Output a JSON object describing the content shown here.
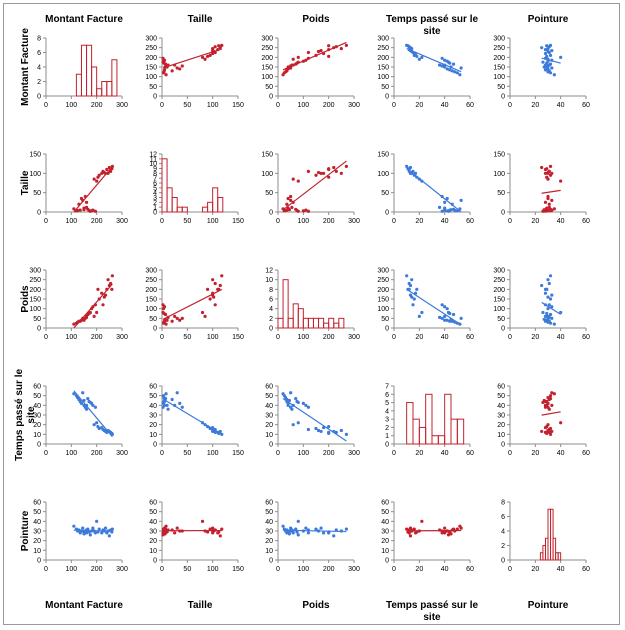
{
  "chart_data": {
    "type": "scatter-matrix",
    "variables": [
      "Montant Facture",
      "Taille",
      "Poids",
      "Temps passé sur le site",
      "Pointure"
    ],
    "variable_title_lines": [
      [
        "Montant Facture"
      ],
      [
        "Taille"
      ],
      [
        "Poids"
      ],
      [
        "Temps passé sur le",
        "site"
      ],
      [
        "Pointure"
      ]
    ],
    "axes": [
      {
        "ylim": [
          0,
          300
        ],
        "yticks": [
          0,
          50,
          100,
          150,
          200,
          250,
          300
        ],
        "xlim": [
          0,
          300
        ],
        "xticks": [
          0,
          100,
          200,
          300
        ]
      },
      {
        "ylim": [
          0,
          150
        ],
        "yticks": [
          0,
          50,
          100,
          150
        ],
        "xlim": [
          0,
          150
        ],
        "xticks": [
          0,
          50,
          100,
          150
        ]
      },
      {
        "ylim": [
          0,
          300
        ],
        "yticks": [
          0,
          50,
          100,
          150,
          200,
          250,
          300
        ],
        "xlim": [
          0,
          300
        ],
        "xticks": [
          0,
          100,
          200,
          300
        ]
      },
      {
        "ylim": [
          0,
          60
        ],
        "yticks": [
          0,
          10,
          20,
          30,
          40,
          50,
          60
        ],
        "xlim": [
          0,
          60
        ],
        "xticks": [
          0,
          20,
          40,
          60
        ]
      },
      {
        "ylim": [
          0,
          60
        ],
        "yticks": [
          0,
          10,
          20,
          30,
          40,
          50,
          60
        ],
        "xlim": [
          0,
          60
        ],
        "xticks": [
          0,
          20,
          40,
          60
        ]
      }
    ],
    "diagonal_ylims": [
      [
        0,
        8
      ],
      [
        0,
        12
      ],
      [
        0,
        12
      ],
      [
        0,
        7
      ],
      [
        0,
        8
      ]
    ],
    "diagonal_yticks": [
      [
        0,
        2,
        4,
        6,
        8
      ],
      [
        0,
        1,
        2,
        3,
        4,
        5,
        6,
        7,
        8,
        9,
        10,
        11,
        12
      ],
      [
        0,
        2,
        4,
        6,
        8,
        10,
        12
      ],
      [
        0,
        1,
        2,
        3,
        4,
        5,
        6,
        7
      ],
      [
        0,
        2,
        4,
        6,
        8
      ]
    ],
    "data": {
      "Montant Facture": [
        110,
        120,
        125,
        130,
        135,
        140,
        145,
        150,
        150,
        155,
        160,
        160,
        165,
        170,
        175,
        180,
        185,
        190,
        195,
        200,
        205,
        210,
        220,
        225,
        230,
        235,
        240,
        245,
        250,
        255,
        260,
        262
      ],
      "Taille": [
        8,
        3,
        4,
        20,
        5,
        35,
        30,
        6,
        10,
        40,
        12,
        25,
        7,
        4,
        2,
        3,
        5,
        85,
        2,
        80,
        90,
        95,
        100,
        105,
        102,
        100,
        110,
        100,
        115,
        105,
        112,
        118
      ],
      "Poids": [
        20,
        25,
        30,
        35,
        35,
        40,
        50,
        45,
        40,
        50,
        55,
        60,
        70,
        75,
        80,
        100,
        110,
        60,
        120,
        80,
        200,
        150,
        180,
        120,
        160,
        170,
        200,
        250,
        220,
        230,
        200,
        270
      ],
      "Temps passé sur le site": [
        52,
        50,
        48,
        46,
        44,
        42,
        53,
        45,
        40,
        38,
        36,
        40,
        47,
        44,
        43,
        42,
        40,
        20,
        38,
        22,
        18,
        16,
        17,
        15,
        14,
        13,
        12,
        14,
        13,
        12,
        11,
        10
      ],
      "Pointure": [
        35,
        32,
        30,
        31,
        28,
        30,
        33,
        27,
        29,
        30,
        31,
        28,
        32,
        29,
        26,
        30,
        33,
        30,
        28,
        40,
        29,
        32,
        28,
        31,
        30,
        33,
        28,
        30,
        25,
        31,
        29,
        32
      ]
    },
    "histograms": [
      {
        "bin_width": 20,
        "bins": [
          {
            "x": 120,
            "count": 3
          },
          {
            "x": 140,
            "count": 7
          },
          {
            "x": 160,
            "count": 7
          },
          {
            "x": 180,
            "count": 4
          },
          {
            "x": 200,
            "count": 1
          },
          {
            "x": 220,
            "count": 2
          },
          {
            "x": 240,
            "count": 2
          },
          {
            "x": 260,
            "count": 5
          }
        ]
      },
      {
        "bin_width": 10,
        "bins": [
          {
            "x": 0,
            "count": 11
          },
          {
            "x": 10,
            "count": 5
          },
          {
            "x": 20,
            "count": 3
          },
          {
            "x": 30,
            "count": 1
          },
          {
            "x": 40,
            "count": 1
          },
          {
            "x": 80,
            "count": 1
          },
          {
            "x": 90,
            "count": 2
          },
          {
            "x": 100,
            "count": 5
          },
          {
            "x": 110,
            "count": 3
          }
        ]
      },
      {
        "bin_width": 20,
        "bins": [
          {
            "x": 0,
            "count": 2
          },
          {
            "x": 20,
            "count": 10
          },
          {
            "x": 40,
            "count": 2
          },
          {
            "x": 60,
            "count": 5
          },
          {
            "x": 80,
            "count": 4
          },
          {
            "x": 100,
            "count": 2
          },
          {
            "x": 120,
            "count": 2
          },
          {
            "x": 140,
            "count": 2
          },
          {
            "x": 160,
            "count": 2
          },
          {
            "x": 180,
            "count": 1
          },
          {
            "x": 200,
            "count": 2
          },
          {
            "x": 220,
            "count": 1
          },
          {
            "x": 240,
            "count": 2
          }
        ]
      },
      {
        "bin_width": 5,
        "bins": [
          {
            "x": 10,
            "count": 5
          },
          {
            "x": 15,
            "count": 3
          },
          {
            "x": 20,
            "count": 2
          },
          {
            "x": 25,
            "count": 6
          },
          {
            "x": 30,
            "count": 1
          },
          {
            "x": 35,
            "count": 1
          },
          {
            "x": 40,
            "count": 6
          },
          {
            "x": 45,
            "count": 3
          },
          {
            "x": 50,
            "count": 3
          }
        ]
      },
      {
        "bin_width": 2,
        "bins": [
          {
            "x": 24,
            "count": 1
          },
          {
            "x": 26,
            "count": 2
          },
          {
            "x": 28,
            "count": 3
          },
          {
            "x": 30,
            "count": 7
          },
          {
            "x": 32,
            "count": 7
          },
          {
            "x": 34,
            "count": 3
          },
          {
            "x": 36,
            "count": 1
          },
          {
            "x": 38,
            "count": 1
          }
        ]
      }
    ],
    "colors": {
      "positive": "#c3212d",
      "negative": "#3d7ad9",
      "axis": "#8c8c8c",
      "text": "#000000"
    },
    "title": "",
    "legend": "none",
    "grid": false
  }
}
